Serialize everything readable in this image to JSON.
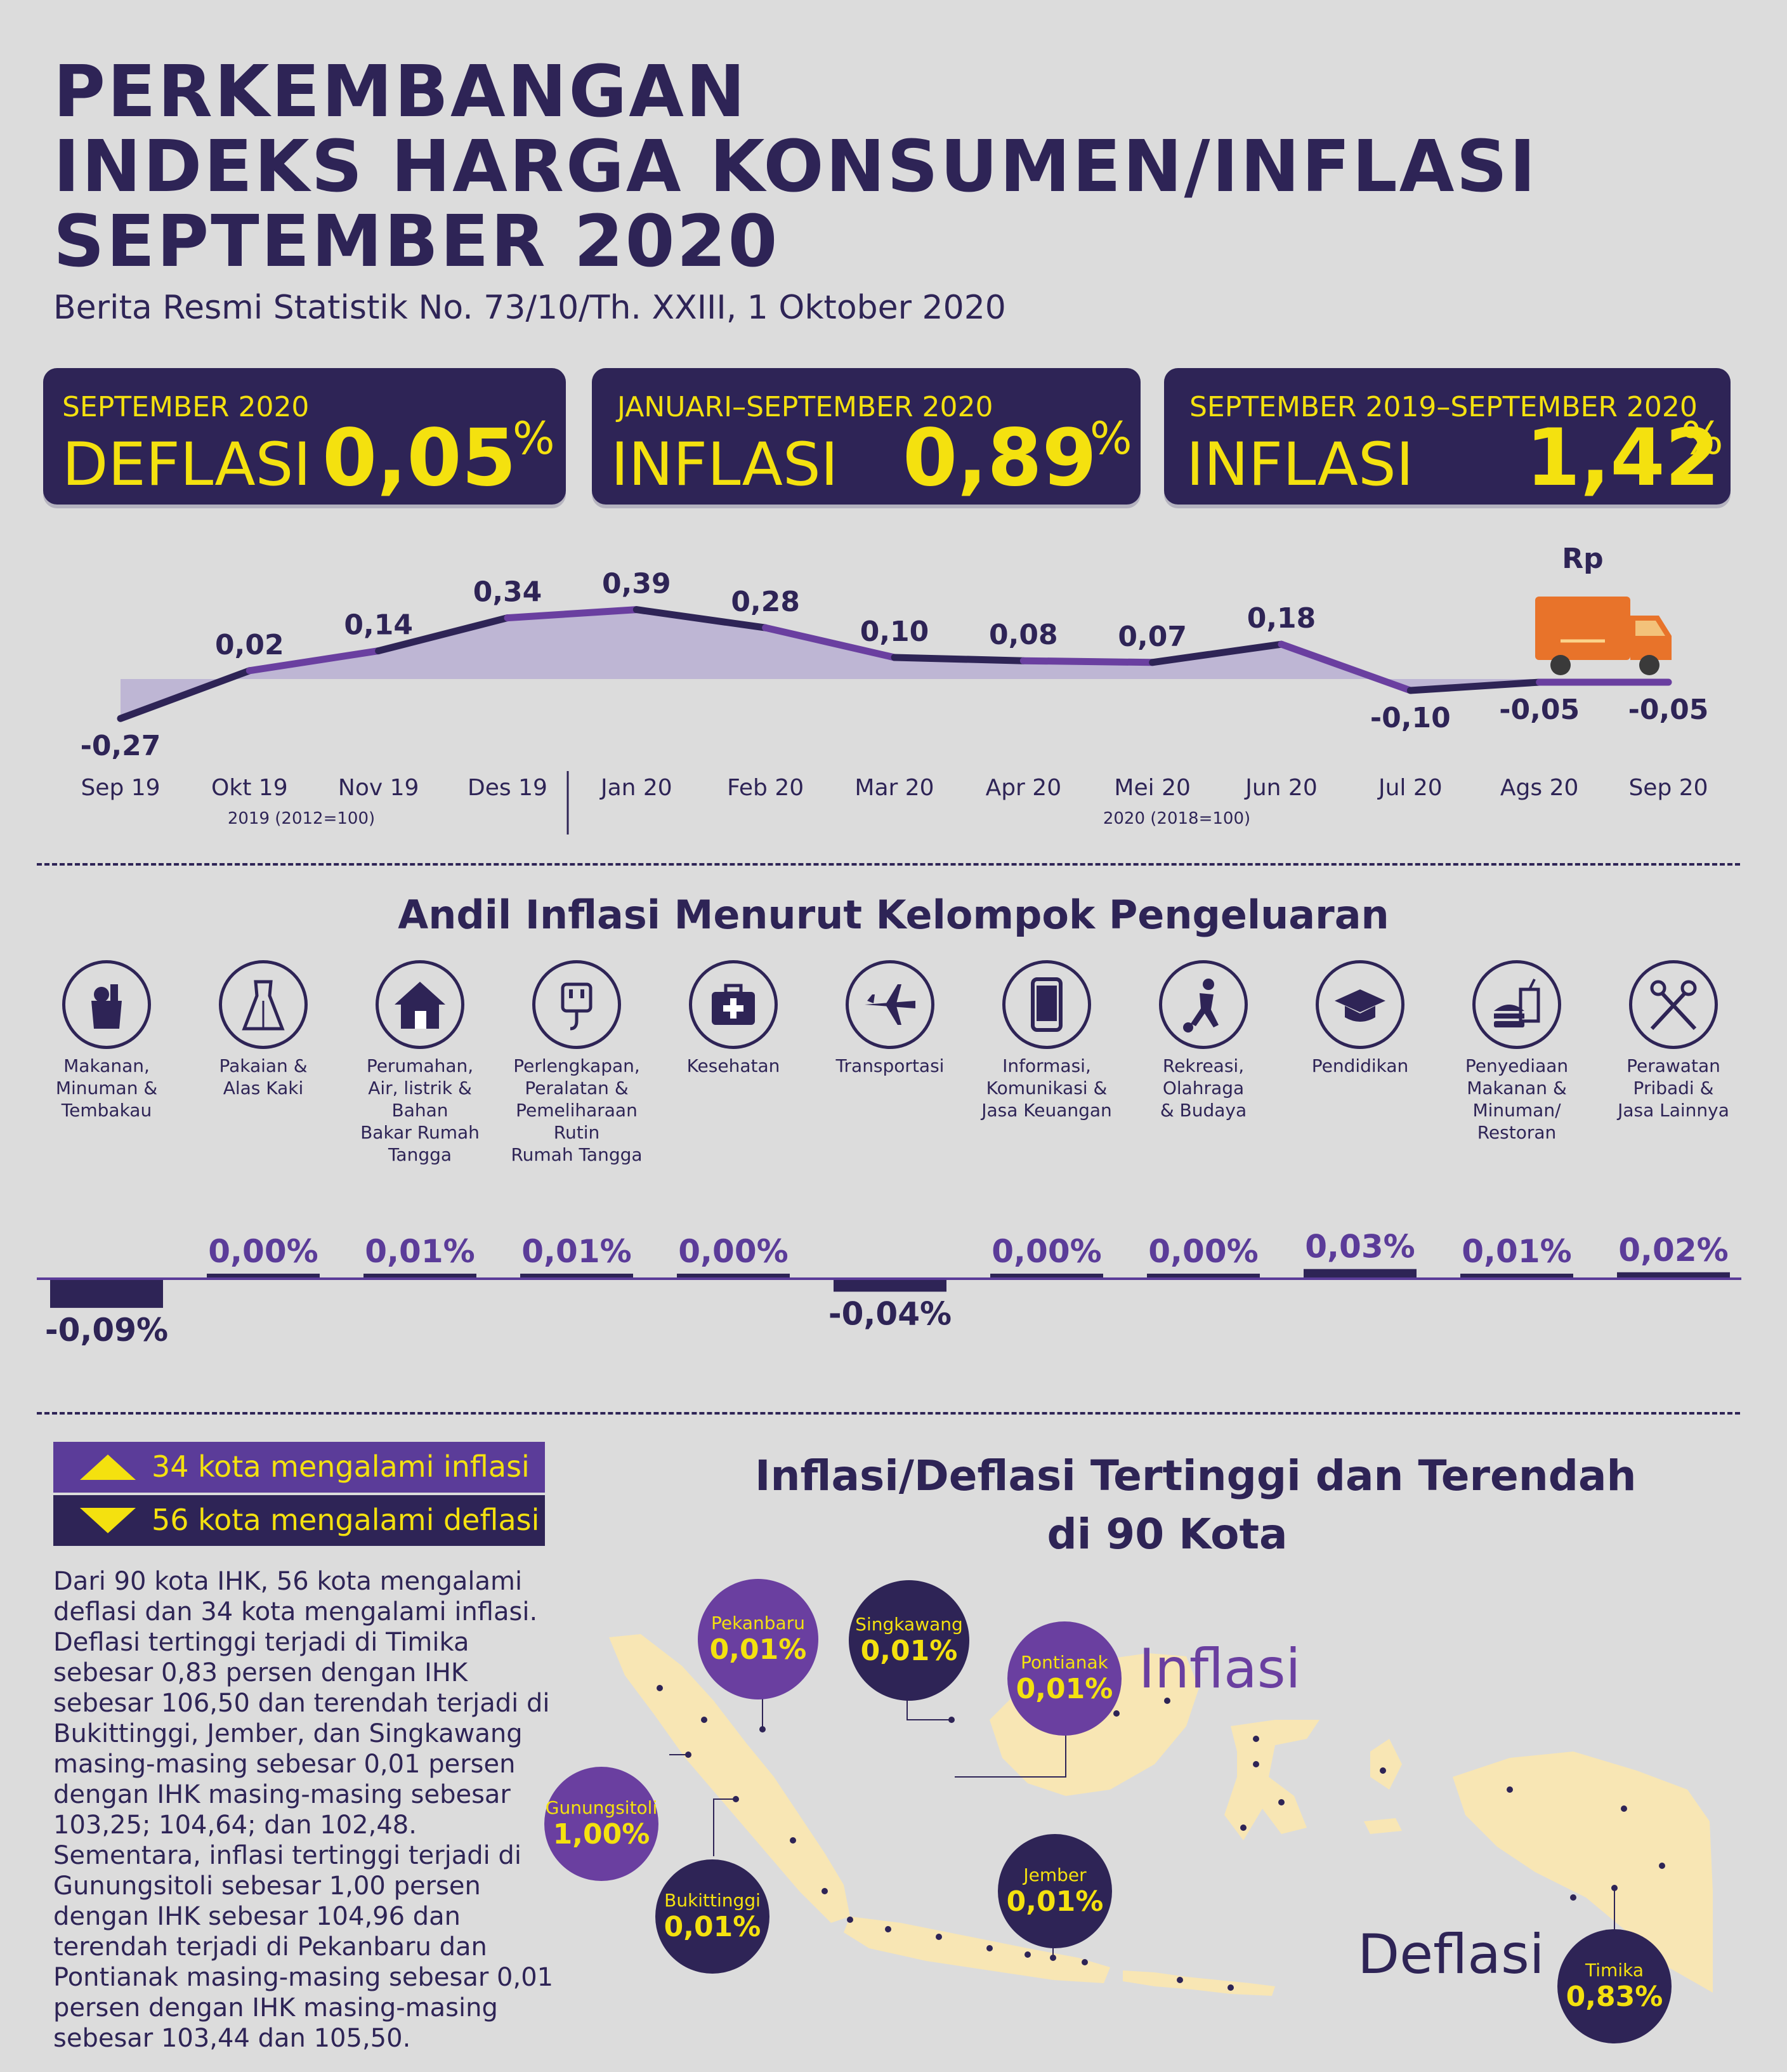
{
  "header": {
    "title_lines": [
      "PERKEMBANGAN",
      "INDEKS HARGA KONSUMEN/INFLASI",
      "SEPTEMBER 2020"
    ],
    "subtitle": "Berita Resmi Statistik No. 73/10/Th. XXIII, 1 Oktober 2020"
  },
  "stat_boxes": [
    {
      "period": "SEPTEMBER 2020",
      "kind": "DEFLASI",
      "value": "0,05",
      "unit": "%"
    },
    {
      "period": "JANUARI–SEPTEMBER 2020",
      "kind": "INFLASI",
      "value": "0,89",
      "unit": "%"
    },
    {
      "period": "SEPTEMBER 2019–SEPTEMBER 2020",
      "kind": "INFLASI",
      "value": "1,42",
      "unit": "%"
    }
  ],
  "chart_data": {
    "type": "line",
    "x": [
      "Sep 19",
      "Okt 19",
      "Nov 19",
      "Des 19",
      "Jan 20",
      "Feb 20",
      "Mar 20",
      "Apr 20",
      "Mei 20",
      "Jun 20",
      "Jul 20",
      "Ags 20",
      "Sep 20"
    ],
    "values": [
      -0.27,
      0.02,
      0.14,
      0.34,
      0.39,
      0.28,
      0.1,
      0.08,
      0.07,
      0.18,
      -0.1,
      -0.05,
      -0.05
    ],
    "value_labels": [
      "-0,27",
      "0,02",
      "0,14",
      "0,34",
      "0,39",
      "0,28",
      "0,10",
      "0,08",
      "0,07",
      "0,18",
      "-0,10",
      "-0,05",
      "-0,05"
    ],
    "ylim": [
      -0.3,
      0.45
    ],
    "base_notes": [
      "2019 (2012=100)",
      "2020 (2018=100)"
    ],
    "colors": {
      "line_dark": "#2e2456",
      "line_purple": "#6a3fa0",
      "area": "#b4a9d2"
    }
  },
  "truck_badge": "Rp",
  "contribution": {
    "title": "Andil Inflasi Menurut Kelompok Pengeluaran",
    "categories": [
      {
        "icon": "grocery-bag-icon",
        "label_lines": [
          "Makanan,",
          "Minuman &",
          "Tembakau"
        ],
        "value": -0.09,
        "value_label": "-0,09%"
      },
      {
        "icon": "dress-icon",
        "label_lines": [
          "Pakaian &",
          "Alas Kaki"
        ],
        "value": 0.0,
        "value_label": "0,00%"
      },
      {
        "icon": "house-icon",
        "label_lines": [
          "Perumahan,",
          "Air, listrik &",
          "Bahan",
          "Bakar Rumah",
          "Tangga"
        ],
        "value": 0.01,
        "value_label": "0,01%"
      },
      {
        "icon": "power-plug-icon",
        "label_lines": [
          "Perlengkapan,",
          "Peralatan &",
          "Pemeliharaan",
          "Rutin",
          "Rumah Tangga"
        ],
        "value": 0.01,
        "value_label": "0,01%"
      },
      {
        "icon": "medical-kit-icon",
        "label_lines": [
          "Kesehatan"
        ],
        "value": 0.0,
        "value_label": "0,00%"
      },
      {
        "icon": "airplane-icon",
        "label_lines": [
          "Transportasi"
        ],
        "value": -0.04,
        "value_label": "-0,04%"
      },
      {
        "icon": "smartphone-icon",
        "label_lines": [
          "Informasi,",
          "Komunikasi &",
          "Jasa Keuangan"
        ],
        "value": 0.0,
        "value_label": "0,00%"
      },
      {
        "icon": "soccer-player-icon",
        "label_lines": [
          "Rekreasi,",
          "Olahraga",
          "& Budaya"
        ],
        "value": 0.0,
        "value_label": "0,00%"
      },
      {
        "icon": "graduation-cap-icon",
        "label_lines": [
          "Pendidikan"
        ],
        "value": 0.03,
        "value_label": "0,03%"
      },
      {
        "icon": "fast-food-icon",
        "label_lines": [
          "Penyediaan",
          "Makanan &",
          "Minuman/",
          "Restoran"
        ],
        "value": 0.01,
        "value_label": "0,01%"
      },
      {
        "icon": "scissors-comb-icon",
        "label_lines": [
          "Perawatan",
          "Pribadi &",
          "Jasa Lainnya"
        ],
        "value": 0.02,
        "value_label": "0,02%"
      }
    ],
    "colors": {
      "bar": "#2e2456",
      "axis": "#5b3c99",
      "label": "#5b3c99"
    }
  },
  "legend": {
    "inflation": "34 kota mengalami inflasi",
    "deflation": "56 kota mengalami deflasi"
  },
  "summary_lines": [
    "Dari 90 kota IHK, 56 kota mengalami",
    "deflasi dan 34 kota mengalami inflasi.",
    "Deflasi tertinggi terjadi di Timika",
    "sebesar 0,83 persen dengan IHK",
    "sebesar 106,50 dan terendah terjadi di",
    "Bukittinggi, Jember, dan Singkawang",
    "masing-masing sebesar 0,01 persen",
    "dengan IHK masing-masing sebesar",
    "103,25; 104,64; dan 102,48.",
    "Sementara, inflasi tertinggi terjadi di",
    "Gunungsitoli sebesar 1,00 persen",
    "dengan IHK sebesar 104,96 dan",
    "terendah terjadi di Pekanbaru dan",
    "Pontianak masing-masing sebesar 0,01",
    "persen dengan IHK masing-masing",
    "sebesar 103,44 dan 105,50."
  ],
  "map": {
    "title_lines": [
      "Inflasi/Deflasi Tertinggi dan Terendah",
      "di 90 Kota"
    ],
    "inflation_word": "Inflasi",
    "deflation_word": "Deflasi",
    "cities": [
      {
        "name": "Pekanbaru",
        "value": "0,01%",
        "type": "inflasi"
      },
      {
        "name": "Singkawang",
        "value": "0,01%",
        "type": "deflasi"
      },
      {
        "name": "Pontianak",
        "value": "0,01%",
        "type": "inflasi"
      },
      {
        "name": "Gunungsitoli",
        "value": "1,00%",
        "type": "inflasi"
      },
      {
        "name": "Bukittinggi",
        "value": "0,01%",
        "type": "deflasi"
      },
      {
        "name": "Jember",
        "value": "0,01%",
        "type": "deflasi"
      },
      {
        "name": "Timika",
        "value": "0,83%",
        "type": "deflasi"
      }
    ],
    "colors": {
      "land": "#f8e6b4",
      "inflasi": "#6a3fa0",
      "deflasi": "#2e2456",
      "accent": "#f4e10f"
    }
  }
}
